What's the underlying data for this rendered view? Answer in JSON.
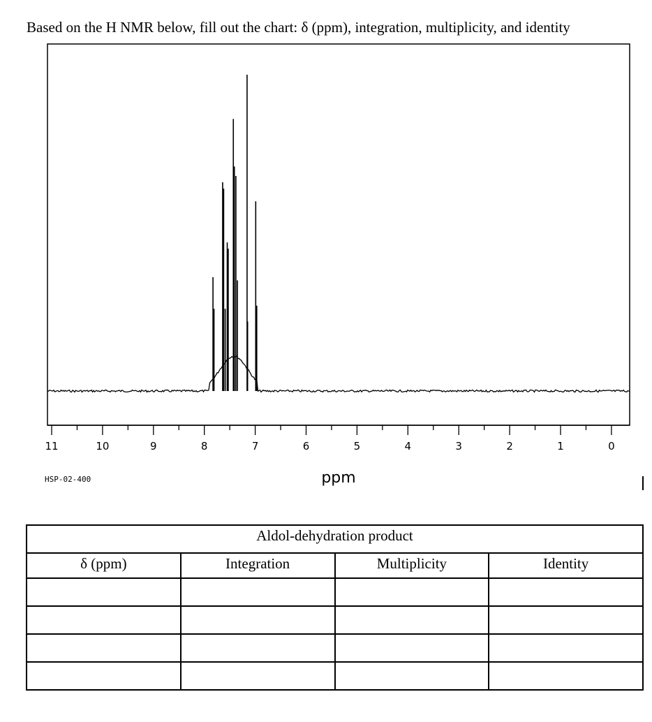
{
  "question": "Based on the H NMR below, fill out the chart: δ (ppm), integration, multiplicity, and identity",
  "chart_data": {
    "type": "line",
    "title": "",
    "xlabel": "ppm",
    "ylabel": "",
    "xlim": [
      11,
      -0.3
    ],
    "x_reversed": true,
    "spectrum_code": "HSP-02-400",
    "tick_labels": [
      "11",
      "10",
      "9",
      "8",
      "7",
      "6",
      "5",
      "4",
      "3",
      "2",
      "1",
      "0"
    ],
    "ticks": [
      11,
      10,
      9,
      8,
      7,
      6,
      5,
      4,
      3,
      2,
      1,
      0
    ],
    "minor_ticks": [
      10.5,
      9.5,
      8.5,
      7.5,
      6.5,
      5.5,
      4.5,
      3.5,
      2.5,
      1.5,
      0.5
    ],
    "baseline": 0,
    "y_max": 1.0,
    "peaks": [
      {
        "ppm": 7.83,
        "height": 0.36
      },
      {
        "ppm": 7.81,
        "height": 0.26
      },
      {
        "ppm": 7.64,
        "height": 0.66
      },
      {
        "ppm": 7.62,
        "height": 0.64
      },
      {
        "ppm": 7.59,
        "height": 0.26
      },
      {
        "ppm": 7.55,
        "height": 0.47
      },
      {
        "ppm": 7.53,
        "height": 0.45
      },
      {
        "ppm": 7.43,
        "height": 0.86
      },
      {
        "ppm": 7.41,
        "height": 0.71
      },
      {
        "ppm": 7.38,
        "height": 0.68
      },
      {
        "ppm": 7.35,
        "height": 0.35
      },
      {
        "ppm": 7.16,
        "height": 1.0
      },
      {
        "ppm": 7.15,
        "height": 0.22
      },
      {
        "ppm": 6.99,
        "height": 0.6
      },
      {
        "ppm": 6.97,
        "height": 0.27
      }
    ]
  },
  "table": {
    "title": "Aldol-dehydration product",
    "headers": [
      "δ (ppm)",
      "Integration",
      "Multiplicity",
      "Identity"
    ],
    "rows": [
      [
        "",
        "",
        "",
        ""
      ],
      [
        "",
        "",
        "",
        ""
      ],
      [
        "",
        "",
        "",
        ""
      ],
      [
        "",
        "",
        "",
        ""
      ]
    ]
  }
}
